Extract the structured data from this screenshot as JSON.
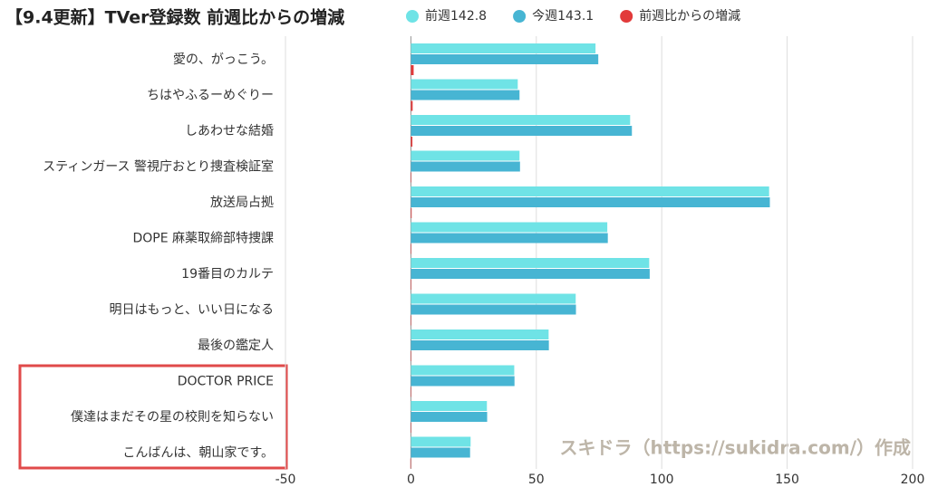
{
  "chart_data": {
    "type": "bar",
    "orientation": "horizontal",
    "title": "【9.4更新】TVer登録数 前週比からの増減",
    "categories": [
      "愛の、がっこう。",
      "ちはやふるーめぐりー",
      "しあわせな結婚",
      "スティンガース 警視庁おとり捜査検証室",
      "放送局占拠",
      "DOPE 麻薬取締部特捜課",
      "19番目のカルテ",
      "明日はもっと、いい日になる",
      "最後の鑑定人",
      "DOCTOR PRICE",
      "僕達はまだその星の校則を知らない",
      "こんばんは、朝山家です。"
    ],
    "series": [
      {
        "name": "前週142.8",
        "color": "#6fe3e6",
        "values": [
          73.6,
          42.6,
          87.4,
          43.3,
          142.8,
          78.3,
          95,
          65.7,
          54.9,
          41.2,
          30.3,
          23.8
        ]
      },
      {
        "name": "今週143.1",
        "color": "#47b5d3",
        "values": [
          74.7,
          43.3,
          88.1,
          43.5,
          143.1,
          78.5,
          95.2,
          65.8,
          55,
          41.3,
          30.4,
          23.6
        ]
      },
      {
        "name": "前週比からの増減",
        "color": "#e23a3a",
        "values": [
          1.1,
          0.7,
          0.6,
          0.2,
          0.3,
          0.2,
          0.2,
          0.1,
          0.1,
          0.1,
          0.1,
          -0.2
        ]
      }
    ],
    "xlim": [
      -50,
      200
    ],
    "xticks": [
      -50,
      0,
      50,
      100,
      150,
      200
    ],
    "grid": true,
    "annotation": "スキドラ（https://sukidra.com/）作成"
  }
}
